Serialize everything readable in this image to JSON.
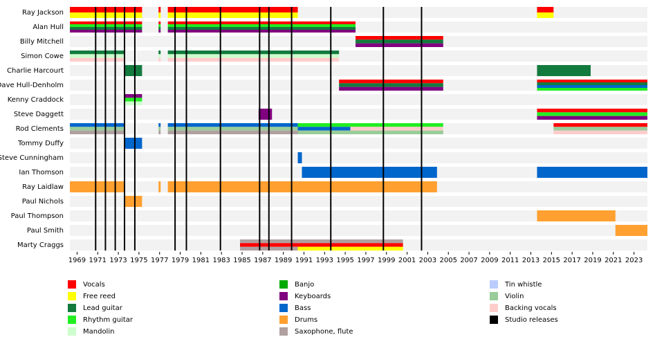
{
  "chart_data": {
    "type": "timeline",
    "xlim": [
      1968.3,
      2024.3
    ],
    "xticks": [
      1969,
      1971,
      1973,
      1975,
      1977,
      1979,
      1981,
      1983,
      1985,
      1987,
      1989,
      1991,
      1993,
      1995,
      1997,
      1999,
      2001,
      2003,
      2005,
      2007,
      2009,
      2011,
      2013,
      2015,
      2017,
      2019,
      2021,
      2023
    ],
    "roles": [
      {
        "name": "Vocals",
        "color": "#ff0000"
      },
      {
        "name": "Free reed",
        "color": "#ffff00"
      },
      {
        "name": "Lead guitar",
        "color": "#137a3e"
      },
      {
        "name": "Rhythm guitar",
        "color": "#22ee22"
      },
      {
        "name": "Mandolin",
        "color": "#ccffcc"
      },
      {
        "name": "Banjo",
        "color": "#00aa00"
      },
      {
        "name": "Keyboards",
        "color": "#800080"
      },
      {
        "name": "Bass",
        "color": "#0066cc"
      },
      {
        "name": "Drums",
        "color": "#ffa030"
      },
      {
        "name": "Saxophone, flute",
        "color": "#b0a0a0"
      },
      {
        "name": "Tin whistle",
        "color": "#bbccff"
      },
      {
        "name": "Violin",
        "color": "#99cc99"
      },
      {
        "name": "Backing vocals",
        "color": "#ffcccc"
      }
    ],
    "release_label": "Studio releases",
    "release_color": "#000000",
    "releases": [
      1970.8,
      1971.75,
      1972.7,
      1973.6,
      1974.6,
      1978.5,
      1979.6,
      1982.9,
      1986.7,
      1987.6,
      1989.8,
      1993.6,
      1998.7,
      2002.4
    ],
    "members": [
      {
        "name": "Ray Jackson",
        "bars": [
          {
            "start": 1968.3,
            "end": 1975.3,
            "roles": [
              "Vocals",
              "Free reed"
            ]
          },
          {
            "start": 1976.9,
            "end": 1977.1,
            "roles": [
              "Vocals",
              "Free reed"
            ]
          },
          {
            "start": 1977.8,
            "end": 1990.4,
            "roles": [
              "Vocals",
              "Free reed"
            ]
          },
          {
            "start": 2013.6,
            "end": 2015.2,
            "roles": [
              "Vocals",
              "Free reed"
            ]
          }
        ]
      },
      {
        "name": "Alan Hull",
        "bars": [
          {
            "start": 1968.3,
            "end": 1975.3,
            "roles": [
              "Vocals",
              "Rhythm guitar",
              "Lead guitar",
              "Keyboards"
            ]
          },
          {
            "start": 1976.9,
            "end": 1977.1,
            "roles": [
              "Vocals",
              "Rhythm guitar",
              "Lead guitar",
              "Keyboards"
            ]
          },
          {
            "start": 1977.8,
            "end": 1996.0,
            "roles": [
              "Vocals",
              "Rhythm guitar",
              "Lead guitar",
              "Keyboards"
            ]
          }
        ]
      },
      {
        "name": "Billy Mitchell",
        "bars": [
          {
            "start": 1996.0,
            "end": 2004.5,
            "roles": [
              "Vocals",
              "Lead guitar",
              "Keyboards"
            ]
          }
        ]
      },
      {
        "name": "Simon Cowe",
        "bars": [
          {
            "start": 1968.3,
            "end": 1973.6,
            "roles": [
              "Lead guitar",
              "Mandolin",
              "Backing vocals"
            ]
          },
          {
            "start": 1976.9,
            "end": 1977.1,
            "roles": [
              "Lead guitar",
              "Mandolin",
              "Backing vocals"
            ]
          },
          {
            "start": 1977.8,
            "end": 1994.4,
            "roles": [
              "Lead guitar",
              "Mandolin",
              "Backing vocals"
            ]
          }
        ]
      },
      {
        "name": "Charlie Harcourt",
        "bars": [
          {
            "start": 1973.6,
            "end": 1975.3,
            "roles": [
              "Lead guitar"
            ]
          },
          {
            "start": 2013.6,
            "end": 2018.8,
            "roles": [
              "Lead guitar"
            ]
          }
        ]
      },
      {
        "name": "Dave Hull-Denholm",
        "bars": [
          {
            "start": 1994.4,
            "end": 2004.5,
            "roles": [
              "Vocals",
              "Lead guitar",
              "Keyboards"
            ]
          },
          {
            "start": 2013.6,
            "end": 2024.3,
            "roles": [
              "Vocals",
              "Lead guitar",
              "Bass",
              "Rhythm guitar"
            ]
          }
        ]
      },
      {
        "name": "Kenny Craddock",
        "bars": [
          {
            "start": 1973.6,
            "end": 1975.3,
            "roles": [
              "Keyboards",
              "Rhythm guitar",
              "Mandolin"
            ]
          }
        ]
      },
      {
        "name": "Steve Daggett",
        "bars": [
          {
            "start": 1986.6,
            "end": 1987.9,
            "roles": [
              "Keyboards"
            ]
          },
          {
            "start": 2013.6,
            "end": 2024.3,
            "roles": [
              "Vocals",
              "Rhythm guitar",
              "Keyboards"
            ]
          }
        ]
      },
      {
        "name": "Rod Clements",
        "bars": [
          {
            "start": 1968.3,
            "end": 1973.6,
            "roles": [
              "Bass",
              "Violin",
              "Saxophone, flute"
            ]
          },
          {
            "start": 1976.9,
            "end": 1977.1,
            "roles": [
              "Bass",
              "Violin",
              "Saxophone, flute"
            ]
          },
          {
            "start": 1977.8,
            "end": 1990.4,
            "roles": [
              "Bass",
              "Violin",
              "Saxophone, flute"
            ]
          },
          {
            "start": 1990.4,
            "end": 1995.5,
            "roles": [
              "Rhythm guitar",
              "Bass",
              "Violin"
            ]
          },
          {
            "start": 1995.5,
            "end": 2004.5,
            "roles": [
              "Rhythm guitar",
              "Backing vocals",
              "Violin"
            ]
          },
          {
            "start": 2015.2,
            "end": 2024.3,
            "roles": [
              "Vocals",
              "Violin",
              "Backing vocals"
            ]
          }
        ]
      },
      {
        "name": "Tommy Duffy",
        "bars": [
          {
            "start": 1973.6,
            "end": 1975.3,
            "roles": [
              "Bass"
            ]
          }
        ]
      },
      {
        "name": "Steve Cunningham",
        "bars": [
          {
            "start": 1990.4,
            "end": 1990.8,
            "roles": [
              "Bass"
            ]
          }
        ]
      },
      {
        "name": "Ian Thomson",
        "bars": [
          {
            "start": 1990.8,
            "end": 2003.9,
            "roles": [
              "Bass"
            ]
          },
          {
            "start": 2013.6,
            "end": 2024.3,
            "roles": [
              "Bass"
            ]
          }
        ]
      },
      {
        "name": "Ray Laidlaw",
        "bars": [
          {
            "start": 1968.3,
            "end": 1973.6,
            "roles": [
              "Drums"
            ]
          },
          {
            "start": 1976.9,
            "end": 1977.1,
            "roles": [
              "Drums"
            ]
          },
          {
            "start": 1977.8,
            "end": 2003.9,
            "roles": [
              "Drums"
            ]
          }
        ]
      },
      {
        "name": "Paul Nichols",
        "bars": [
          {
            "start": 1973.6,
            "end": 1975.3,
            "roles": [
              "Drums"
            ]
          }
        ]
      },
      {
        "name": "Paul Thompson",
        "bars": [
          {
            "start": 2013.6,
            "end": 2021.2,
            "roles": [
              "Drums"
            ]
          }
        ]
      },
      {
        "name": "Paul Smith",
        "bars": [
          {
            "start": 2021.2,
            "end": 2024.3,
            "roles": [
              "Drums"
            ]
          }
        ]
      },
      {
        "name": "Marty Craggs",
        "bars": [
          {
            "start": 1984.8,
            "end": 1990.4,
            "roles": [
              "Saxophone, flute",
              "Vocals",
              "Saxophone, flute"
            ]
          },
          {
            "start": 1990.4,
            "end": 2000.6,
            "roles": [
              "Saxophone, flute",
              "Vocals",
              "Free reed"
            ]
          }
        ]
      }
    ]
  }
}
